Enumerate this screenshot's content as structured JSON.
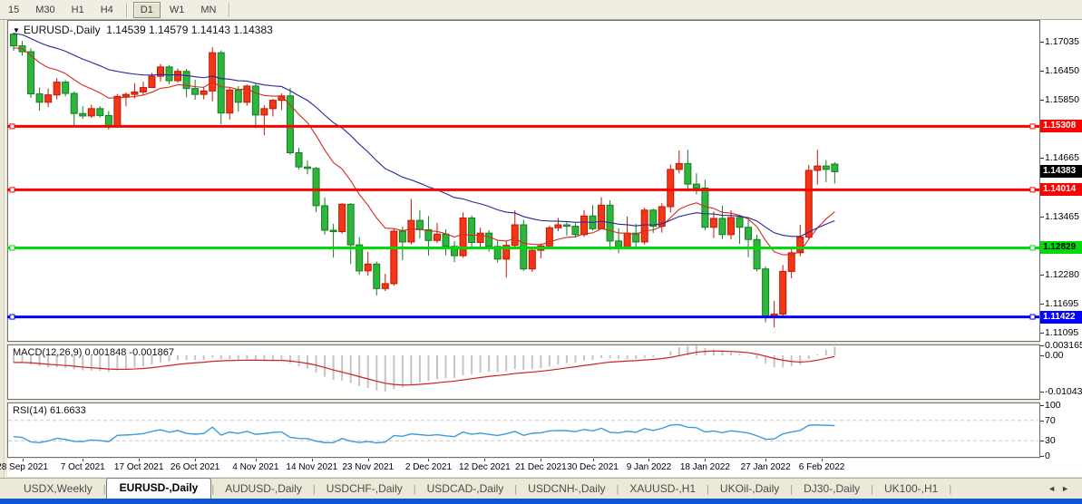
{
  "toolbar": {
    "timeframes": [
      "15",
      "M30",
      "H1",
      "H4",
      "D1",
      "W1",
      "MN"
    ],
    "active": "D1"
  },
  "chart": {
    "symbol_label": "EURUSD-,Daily",
    "ohlc_readout": "1.14539 1.14579 1.14143 1.14383",
    "colors": {
      "up_candle": "#f23718",
      "up_border": "#c41500",
      "down_candle": "#2eb53c",
      "down_border": "#157d22",
      "ma_fast": "#d62a1e",
      "ma_slow": "#26269c",
      "line_red": "#fe0100",
      "line_green": "#00dc0a",
      "line_blue": "#0202fe",
      "macd_bar": "#c4c4c4",
      "macd_signal": "#cc2222",
      "rsi_line": "#3a9bdc"
    }
  },
  "price_axis": {
    "ticks": [
      "1.17035",
      "1.16450",
      "1.15850",
      "1.14665",
      "1.13465",
      "1.12280",
      "1.11695",
      "1.11095"
    ],
    "badges": [
      {
        "value": "1.15308",
        "bg": "#fe0100",
        "fg": "#ffffff",
        "kind": "red-resistance-line"
      },
      {
        "value": "1.14383",
        "bg": "#000000",
        "fg": "#ffffff",
        "kind": "current-price"
      },
      {
        "value": "1.14014",
        "bg": "#fe0100",
        "fg": "#ffffff",
        "kind": "red-support-line"
      },
      {
        "value": "1.12829",
        "bg": "#00dc0a",
        "fg": "#000000",
        "kind": "green-support-line"
      },
      {
        "value": "1.11422",
        "bg": "#0202fe",
        "fg": "#ffffff",
        "kind": "blue-support-line"
      }
    ]
  },
  "chart_data": {
    "type": "candlestick",
    "title": "EURUSD-,Daily",
    "color_convention": "red = bullish candle, green = bearish candle",
    "ylim": [
      1.1092,
      1.1748
    ],
    "y_ticks": [
      1.17035,
      1.1645,
      1.1585,
      1.14665,
      1.13465,
      1.1228,
      1.11695,
      1.11095
    ],
    "horizontal_lines": [
      {
        "price": 1.15308,
        "color": "red"
      },
      {
        "price": 1.14014,
        "color": "red"
      },
      {
        "price": 1.12829,
        "color": "green"
      },
      {
        "price": 1.11422,
        "color": "blue"
      }
    ],
    "last_close": 1.14383,
    "moving_averages": [
      {
        "name": "fast-ma",
        "period": 12,
        "color": "#d62a1e"
      },
      {
        "name": "slow-ma",
        "period": 30,
        "color": "#26269c"
      }
    ],
    "candles": [
      [
        1.1719,
        1.1722,
        1.1685,
        1.1695
      ],
      [
        1.1695,
        1.1705,
        1.1675,
        1.1683
      ],
      [
        1.1683,
        1.169,
        1.1589,
        1.1597
      ],
      [
        1.1597,
        1.161,
        1.1563,
        1.158
      ],
      [
        1.158,
        1.1608,
        1.157,
        1.1595
      ],
      [
        1.1595,
        1.1629,
        1.1586,
        1.1621
      ],
      [
        1.1621,
        1.1625,
        1.1592,
        1.1598
      ],
      [
        1.1598,
        1.1602,
        1.1529,
        1.1557
      ],
      [
        1.1557,
        1.1572,
        1.1546,
        1.1552
      ],
      [
        1.1552,
        1.1575,
        1.1548,
        1.1567
      ],
      [
        1.1567,
        1.1572,
        1.1549,
        1.1553
      ],
      [
        1.1553,
        1.1562,
        1.1524,
        1.1531
      ],
      [
        1.1531,
        1.1597,
        1.1529,
        1.1592
      ],
      [
        1.1592,
        1.16,
        1.1572,
        1.1596
      ],
      [
        1.1596,
        1.1619,
        1.1588,
        1.1601
      ],
      [
        1.1601,
        1.1622,
        1.1595,
        1.161
      ],
      [
        1.161,
        1.164,
        1.1609,
        1.1633
      ],
      [
        1.1633,
        1.1658,
        1.1622,
        1.1652
      ],
      [
        1.1652,
        1.1656,
        1.1617,
        1.1624
      ],
      [
        1.1624,
        1.1649,
        1.162,
        1.1643
      ],
      [
        1.1643,
        1.1648,
        1.159,
        1.1608
      ],
      [
        1.1608,
        1.1626,
        1.1585,
        1.1596
      ],
      [
        1.1596,
        1.1612,
        1.1586,
        1.1603
      ],
      [
        1.1603,
        1.1692,
        1.1582,
        1.1681
      ],
      [
        1.1681,
        1.1686,
        1.1535,
        1.1558
      ],
      [
        1.1558,
        1.1609,
        1.1545,
        1.1605
      ],
      [
        1.1605,
        1.1613,
        1.1561,
        1.158
      ],
      [
        1.158,
        1.1616,
        1.1573,
        1.1613
      ],
      [
        1.1613,
        1.1618,
        1.1527,
        1.1554
      ],
      [
        1.1554,
        1.1574,
        1.1513,
        1.1567
      ],
      [
        1.1567,
        1.1587,
        1.1551,
        1.1584
      ],
      [
        1.1584,
        1.1598,
        1.1564,
        1.1593
      ],
      [
        1.1593,
        1.1609,
        1.1473,
        1.1477
      ],
      [
        1.1477,
        1.1487,
        1.1443,
        1.1448
      ],
      [
        1.1448,
        1.1461,
        1.1433,
        1.1445
      ],
      [
        1.1445,
        1.1448,
        1.1356,
        1.1369
      ],
      [
        1.1369,
        1.1386,
        1.131,
        1.1319
      ],
      [
        1.1319,
        1.1332,
        1.1263,
        1.1316
      ],
      [
        1.1316,
        1.1374,
        1.1312,
        1.1372
      ],
      [
        1.1372,
        1.1374,
        1.125,
        1.1289
      ],
      [
        1.1289,
        1.1305,
        1.1228,
        1.1236
      ],
      [
        1.1236,
        1.1275,
        1.1226,
        1.125
      ],
      [
        1.125,
        1.1255,
        1.1186,
        1.12
      ],
      [
        1.12,
        1.123,
        1.1195,
        1.121
      ],
      [
        1.121,
        1.1323,
        1.1206,
        1.1317
      ],
      [
        1.1317,
        1.1326,
        1.1258,
        1.1295
      ],
      [
        1.1295,
        1.1383,
        1.129,
        1.1339
      ],
      [
        1.1339,
        1.136,
        1.1303,
        1.132
      ],
      [
        1.132,
        1.1348,
        1.1267,
        1.1298
      ],
      [
        1.1298,
        1.1334,
        1.1293,
        1.1311
      ],
      [
        1.1311,
        1.1321,
        1.1268,
        1.1286
      ],
      [
        1.1286,
        1.1297,
        1.1254,
        1.1267
      ],
      [
        1.1267,
        1.1355,
        1.1263,
        1.1344
      ],
      [
        1.1344,
        1.1349,
        1.1282,
        1.1294
      ],
      [
        1.1294,
        1.1324,
        1.1283,
        1.1313
      ],
      [
        1.1313,
        1.1319,
        1.1275,
        1.1286
      ],
      [
        1.1286,
        1.1298,
        1.1253,
        1.126
      ],
      [
        1.126,
        1.1296,
        1.1222,
        1.1288
      ],
      [
        1.1288,
        1.136,
        1.128,
        1.133
      ],
      [
        1.133,
        1.134,
        1.1236,
        1.124
      ],
      [
        1.124,
        1.1285,
        1.1234,
        1.1278
      ],
      [
        1.1278,
        1.1292,
        1.1262,
        1.1287
      ],
      [
        1.1287,
        1.1328,
        1.1282,
        1.1324
      ],
      [
        1.1324,
        1.1344,
        1.1317,
        1.133
      ],
      [
        1.133,
        1.1336,
        1.1308,
        1.1327
      ],
      [
        1.1327,
        1.1333,
        1.1304,
        1.131
      ],
      [
        1.131,
        1.136,
        1.1305,
        1.1348
      ],
      [
        1.1348,
        1.137,
        1.1318,
        1.1322
      ],
      [
        1.1322,
        1.1386,
        1.1321,
        1.137
      ],
      [
        1.137,
        1.138,
        1.1279,
        1.1297
      ],
      [
        1.1297,
        1.1323,
        1.1272,
        1.1285
      ],
      [
        1.1285,
        1.1347,
        1.128,
        1.1313
      ],
      [
        1.1313,
        1.1332,
        1.1285,
        1.1295
      ],
      [
        1.1295,
        1.1365,
        1.129,
        1.136
      ],
      [
        1.136,
        1.1363,
        1.1313,
        1.1327
      ],
      [
        1.1327,
        1.1374,
        1.1314,
        1.1367
      ],
      [
        1.1367,
        1.1453,
        1.1355,
        1.1443
      ],
      [
        1.1443,
        1.1482,
        1.1435,
        1.1455
      ],
      [
        1.1455,
        1.1483,
        1.1398,
        1.1413
      ],
      [
        1.1413,
        1.1435,
        1.1392,
        1.1405
      ],
      [
        1.1405,
        1.1422,
        1.1319,
        1.1325
      ],
      [
        1.1325,
        1.1357,
        1.1303,
        1.1343
      ],
      [
        1.1343,
        1.1369,
        1.1301,
        1.131
      ],
      [
        1.131,
        1.136,
        1.13,
        1.1345
      ],
      [
        1.1345,
        1.1349,
        1.1291,
        1.1325
      ],
      [
        1.1325,
        1.134,
        1.1264,
        1.13
      ],
      [
        1.13,
        1.131,
        1.1235,
        1.124
      ],
      [
        1.124,
        1.1245,
        1.1131,
        1.1144
      ],
      [
        1.1144,
        1.1175,
        1.1121,
        1.1148
      ],
      [
        1.1148,
        1.1248,
        1.1141,
        1.1235
      ],
      [
        1.1235,
        1.1285,
        1.1221,
        1.1273
      ],
      [
        1.1273,
        1.133,
        1.1266,
        1.1305
      ],
      [
        1.1305,
        1.1452,
        1.13,
        1.1441
      ],
      [
        1.1441,
        1.1483,
        1.1412,
        1.145
      ],
      [
        1.145,
        1.1462,
        1.1417,
        1.1443
      ],
      [
        1.14539,
        1.14579,
        1.14143,
        1.14383
      ]
    ],
    "date_ticks": [
      {
        "i": 1,
        "label": "28 Sep 2021"
      },
      {
        "i": 8,
        "label": "7 Oct 2021"
      },
      {
        "i": 14.5,
        "label": "17 Oct 2021"
      },
      {
        "i": 21,
        "label": "26 Oct 2021"
      },
      {
        "i": 28,
        "label": "4 Nov 2021"
      },
      {
        "i": 34.5,
        "label": "14 Nov 2021"
      },
      {
        "i": 41,
        "label": "23 Nov 2021"
      },
      {
        "i": 48,
        "label": "2 Dec 2021"
      },
      {
        "i": 54.5,
        "label": "12 Dec 2021"
      },
      {
        "i": 61,
        "label": "21 Dec 2021"
      },
      {
        "i": 67,
        "label": "30 Dec 2021"
      },
      {
        "i": 73.5,
        "label": "9 Jan 2022"
      },
      {
        "i": 80,
        "label": "18 Jan 2022"
      },
      {
        "i": 87,
        "label": "27 Jan 2022"
      },
      {
        "i": 93.5,
        "label": "6 Feb 2022"
      }
    ]
  },
  "macd": {
    "label": "MACD(12,26,9)",
    "values": "0.001848 -0.001867",
    "axis_ticks": [
      "0.003165",
      "0.00",
      "-0.01043"
    ],
    "params": [
      12,
      26,
      9
    ]
  },
  "rsi": {
    "label": "RSI(14)",
    "value": "61.6633",
    "axis_ticks": [
      "100",
      "70",
      "30",
      "0"
    ],
    "levels": [
      70,
      30
    ]
  },
  "tabs": {
    "items": [
      "USDX,Weekly",
      "EURUSD-,Daily",
      "AUDUSD-,Daily",
      "USDCHF-,Daily",
      "USDCAD-,Daily",
      "USDCNH-,Daily",
      "XAUUSD-,H1",
      "UKOil-,Daily",
      "DJ30-,Daily",
      "UK100-,H1"
    ],
    "active_index": 1,
    "scroll_left": "◄",
    "scroll_right": "►"
  }
}
